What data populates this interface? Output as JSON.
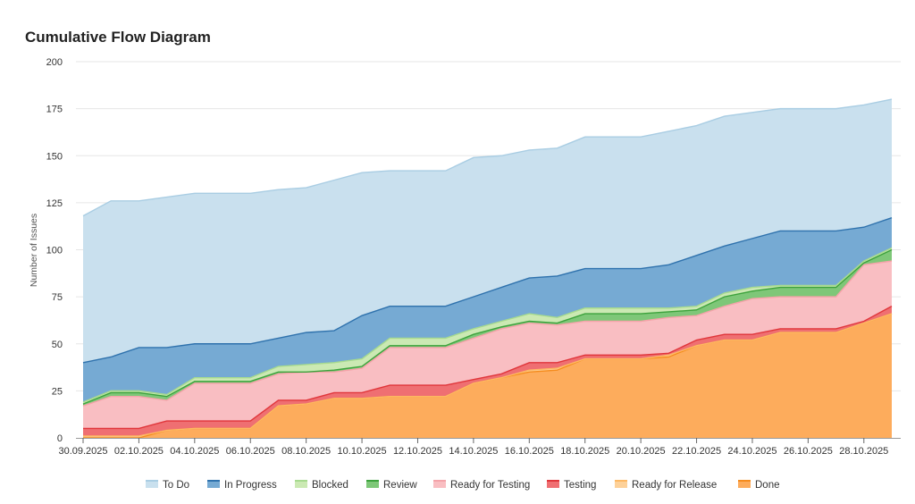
{
  "chart_data": {
    "type": "area",
    "stacked": true,
    "title": "Cumulative Flow Diagram",
    "xlabel": "",
    "ylabel": "Number of Issues",
    "ylim": [
      0,
      200
    ],
    "yticks": [
      0,
      25,
      50,
      75,
      100,
      125,
      150,
      175,
      200
    ],
    "grid": true,
    "legend_position": "bottom",
    "x": [
      "30.09.2025",
      "01.10.2025",
      "02.10.2025",
      "03.10.2025",
      "04.10.2025",
      "05.10.2025",
      "06.10.2025",
      "07.10.2025",
      "08.10.2025",
      "09.10.2025",
      "10.10.2025",
      "11.10.2025",
      "12.10.2025",
      "13.10.2025",
      "14.10.2025",
      "15.10.2025",
      "16.10.2025",
      "17.10.2025",
      "18.10.2025",
      "19.10.2025",
      "20.10.2025",
      "21.10.2025",
      "22.10.2025",
      "23.10.2025",
      "24.10.2025",
      "25.10.2025",
      "26.10.2025",
      "27.10.2025",
      "28.10.2025",
      "29.10.2025"
    ],
    "tick_labels": [
      "30.09.2025",
      "02.10.2025",
      "04.10.2025",
      "06.10.2025",
      "08.10.2025",
      "10.10.2025",
      "12.10.2025",
      "14.10.2025",
      "16.10.2025",
      "18.10.2025",
      "20.10.2025",
      "22.10.2025",
      "24.10.2025",
      "26.10.2025",
      "28.10.2025"
    ],
    "series_bottom_to_top": [
      {
        "name": "Done",
        "fill": "#fdac5c",
        "line": "#f58c1e",
        "values": [
          0,
          0,
          0,
          4,
          5,
          5,
          5,
          17,
          18,
          21,
          21,
          22,
          22,
          22,
          29,
          32,
          35,
          36,
          42,
          42,
          42,
          43,
          49,
          52,
          52,
          56,
          56,
          56,
          61,
          66
        ]
      },
      {
        "name": "Ready for Release",
        "fill": "#fdd199",
        "line": "#fdb863",
        "values": [
          1,
          1,
          1,
          0,
          0,
          0,
          0,
          0,
          0,
          0,
          0,
          0,
          0,
          0,
          0,
          0,
          1,
          1,
          0,
          0,
          0,
          1,
          0,
          0,
          0,
          0,
          0,
          0,
          0,
          0
        ]
      },
      {
        "name": "Testing",
        "fill": "#ef6f72",
        "line": "#e0363b",
        "values": [
          4,
          4,
          4,
          5,
          4,
          4,
          4,
          3,
          2,
          3,
          3,
          6,
          6,
          6,
          2,
          2,
          4,
          3,
          2,
          2,
          2,
          1,
          3,
          3,
          3,
          2,
          2,
          2,
          1,
          4
        ]
      },
      {
        "name": "Ready for Testing",
        "fill": "#f9bec2",
        "line": "#f4a3a9",
        "values": [
          12,
          17,
          17,
          11,
          20,
          20,
          20,
          14,
          15,
          11,
          13,
          20,
          20,
          20,
          22,
          24,
          21,
          20,
          18,
          18,
          18,
          19,
          13,
          15,
          19,
          17,
          17,
          17,
          30,
          24
        ]
      },
      {
        "name": "Review",
        "fill": "#7ec778",
        "line": "#3ca23c",
        "values": [
          1,
          2,
          2,
          2,
          1,
          1,
          1,
          1,
          0,
          1,
          1,
          1,
          1,
          1,
          2,
          1,
          1,
          1,
          4,
          4,
          4,
          3,
          3,
          5,
          4,
          5,
          5,
          5,
          1,
          6
        ]
      },
      {
        "name": "Blocked",
        "fill": "#cbe9b3",
        "line": "#a6da8e",
        "values": [
          1,
          1,
          1,
          1,
          2,
          2,
          2,
          3,
          4,
          4,
          4,
          4,
          4,
          4,
          3,
          3,
          4,
          3,
          3,
          3,
          3,
          2,
          2,
          2,
          2,
          1,
          1,
          1,
          1,
          1
        ]
      },
      {
        "name": "In Progress",
        "fill": "#76aad3",
        "line": "#2f72ad",
        "values": [
          21,
          18,
          23,
          25,
          18,
          18,
          18,
          15,
          17,
          17,
          23,
          17,
          17,
          17,
          17,
          18,
          19,
          22,
          21,
          21,
          21,
          23,
          27,
          25,
          26,
          29,
          29,
          29,
          18,
          16
        ]
      },
      {
        "name": "To Do",
        "fill": "#c9e0ee",
        "line": "#a9cde3",
        "values": [
          78,
          83,
          78,
          80,
          80,
          80,
          80,
          79,
          77,
          80,
          76,
          72,
          72,
          72,
          74,
          70,
          68,
          68,
          70,
          70,
          70,
          71,
          69,
          69,
          67,
          65,
          65,
          65,
          65,
          63
        ]
      }
    ],
    "legend_order": [
      "To Do",
      "In Progress",
      "Blocked",
      "Review",
      "Ready for Testing",
      "Testing",
      "Ready for Release",
      "Done"
    ]
  }
}
